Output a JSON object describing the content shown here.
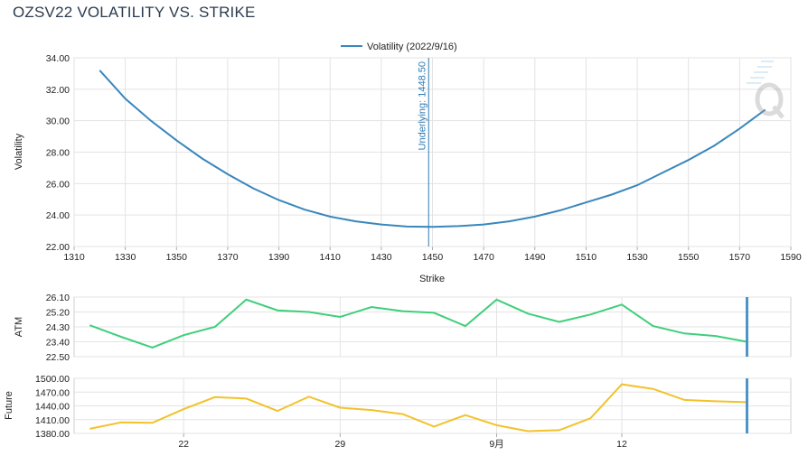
{
  "title": "OZSV22 VOLATILITY VS. STRIKE",
  "chart_data": [
    {
      "type": "line",
      "legend": "Volatility (2022/9/16)",
      "xlabel": "Strike",
      "ylabel": "Volatility",
      "xlim": [
        1310,
        1590
      ],
      "ylim": [
        22,
        34
      ],
      "xticks": [
        "1310",
        "1330",
        "1350",
        "1370",
        "1390",
        "1410",
        "1430",
        "1450",
        "1470",
        "1490",
        "1510",
        "1530",
        "1550",
        "1570",
        "1590"
      ],
      "yticks": [
        "22.00",
        "24.00",
        "26.00",
        "28.00",
        "30.00",
        "32.00",
        "34.00"
      ],
      "series": [
        {
          "name": "Volatility (2022/9/16)",
          "color": "#3a87bb",
          "x": [
            1320,
            1330,
            1340,
            1350,
            1360,
            1370,
            1380,
            1390,
            1400,
            1410,
            1420,
            1430,
            1440,
            1450,
            1460,
            1470,
            1480,
            1490,
            1500,
            1510,
            1520,
            1530,
            1540,
            1550,
            1560,
            1570,
            1580
          ],
          "y": [
            33.2,
            31.4,
            30.0,
            28.75,
            27.6,
            26.6,
            25.7,
            24.95,
            24.35,
            23.9,
            23.6,
            23.4,
            23.27,
            23.25,
            23.3,
            23.4,
            23.6,
            23.9,
            24.3,
            24.8,
            25.3,
            25.9,
            26.7,
            27.5,
            28.4,
            29.5,
            30.7
          ]
        }
      ],
      "annotation": {
        "text": "Underlying: 1448.50",
        "x": 1448.5,
        "color": "#2e7bb4"
      }
    },
    {
      "type": "line",
      "ylabel": "ATM",
      "ylim": [
        22.5,
        26.1
      ],
      "yticks": [
        "22.50",
        "23.40",
        "24.30",
        "25.20",
        "26.10"
      ],
      "series": [
        {
          "name": "ATM",
          "color": "#3ecf7a",
          "values": [
            24.4,
            23.7,
            23.05,
            23.8,
            24.3,
            25.95,
            25.3,
            25.2,
            24.9,
            25.5,
            25.25,
            25.15,
            24.35,
            25.95,
            25.1,
            24.6,
            25.05,
            25.65,
            24.35,
            23.9,
            23.75,
            23.4
          ]
        }
      ],
      "marker_color": "#4a95c8"
    },
    {
      "type": "line",
      "ylabel": "Future",
      "ylim": [
        1380,
        1500
      ],
      "yticks": [
        "1380.00",
        "1410.00",
        "1440.00",
        "1470.00",
        "1500.00"
      ],
      "xtick_labels": [
        "22",
        "29",
        "9月",
        "12"
      ],
      "series": [
        {
          "name": "Future",
          "color": "#f2c22b",
          "values": [
            1390,
            1404,
            1403,
            1433,
            1459,
            1456,
            1429,
            1460,
            1436,
            1431,
            1422,
            1395,
            1420,
            1398,
            1385,
            1387,
            1413,
            1487,
            1477,
            1453,
            1450,
            1448
          ]
        }
      ],
      "marker_color": "#4a95c8"
    }
  ]
}
